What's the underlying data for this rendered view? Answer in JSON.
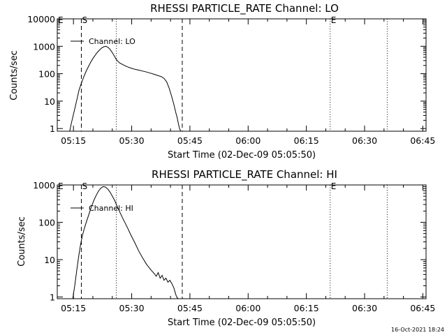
{
  "figure": {
    "footer_timestamp": "16-Oct-2021 18:24"
  },
  "chart_data": [
    {
      "type": "line",
      "title": "RHESSI PARTICLE_RATE Channel: LO",
      "xlabel": "Start Time (02-Dec-09 05:05:50)",
      "ylabel": "Counts/sec",
      "y_scale": "log",
      "ylim": [
        0.8,
        10000
      ],
      "xlim_minutes": [
        5.0,
        100.0
      ],
      "x_ticks": [
        {
          "minute": 9.17,
          "label": "05:15"
        },
        {
          "minute": 24.17,
          "label": "05:30"
        },
        {
          "minute": 39.17,
          "label": "05:45"
        },
        {
          "minute": 54.17,
          "label": "06:00"
        },
        {
          "minute": 69.17,
          "label": "06:15"
        },
        {
          "minute": 84.17,
          "label": "06:30"
        },
        {
          "minute": 99.17,
          "label": "06:45"
        }
      ],
      "y_ticks": [
        {
          "value": 1,
          "label": "1"
        },
        {
          "value": 10,
          "label": "10"
        },
        {
          "value": 100,
          "label": "100"
        },
        {
          "value": 1000,
          "label": "1000"
        },
        {
          "value": 10000,
          "label": "10000"
        }
      ],
      "legend": {
        "position": "top-left",
        "entries": [
          "Channel: LO"
        ]
      },
      "grid": false,
      "markers": [
        {
          "label": "E",
          "minute": 5.0
        },
        {
          "label": "S",
          "minute": 11.2
        },
        {
          "label": "E",
          "minute": 75.3
        }
      ],
      "vlines": [
        {
          "minute": 11.2,
          "style": "dashed"
        },
        {
          "minute": 20.2,
          "style": "dotted"
        },
        {
          "minute": 37.2,
          "style": "dashed"
        },
        {
          "minute": 75.3,
          "style": "dotted"
        },
        {
          "minute": 90.0,
          "style": "dotted"
        }
      ],
      "series": [
        {
          "name": "Channel: LO",
          "x": [
            8.2,
            8.6,
            9.1,
            9.6,
            10.1,
            10.6,
            11.2,
            11.8,
            12.4,
            13.0,
            13.6,
            14.2,
            14.8,
            15.4,
            16.0,
            16.5,
            17.0,
            17.5,
            18.0,
            18.5,
            19.0,
            19.6,
            20.2,
            21.0,
            22.0,
            23.0,
            24.0,
            25.0,
            26.0,
            27.0,
            28.0,
            29.0,
            30.0,
            31.0,
            31.8,
            32.5,
            33.2,
            33.8,
            34.4,
            35.0,
            35.5,
            35.9,
            36.2,
            36.5,
            36.8
          ],
          "values": [
            0.8,
            1.5,
            3,
            6,
            12,
            25,
            45,
            75,
            120,
            180,
            260,
            360,
            480,
            620,
            760,
            880,
            960,
            1000,
            930,
            800,
            640,
            470,
            330,
            250,
            210,
            180,
            160,
            145,
            135,
            125,
            115,
            105,
            95,
            85,
            78,
            68,
            50,
            30,
            16,
            8,
            4,
            2.5,
            1.5,
            1.0,
            0.8
          ]
        }
      ]
    },
    {
      "type": "line",
      "title": "RHESSI PARTICLE_RATE Channel: HI",
      "xlabel": "Start Time (02-Dec-09 05:05:50)",
      "ylabel": "Counts/sec",
      "y_scale": "log",
      "ylim": [
        0.9,
        1000
      ],
      "xlim_minutes": [
        5.0,
        100.0
      ],
      "x_ticks": [
        {
          "minute": 9.17,
          "label": "05:15"
        },
        {
          "minute": 24.17,
          "label": "05:30"
        },
        {
          "minute": 39.17,
          "label": "05:45"
        },
        {
          "minute": 54.17,
          "label": "06:00"
        },
        {
          "minute": 69.17,
          "label": "06:15"
        },
        {
          "minute": 84.17,
          "label": "06:30"
        },
        {
          "minute": 99.17,
          "label": "06:45"
        }
      ],
      "y_ticks": [
        {
          "value": 1,
          "label": "1"
        },
        {
          "value": 10,
          "label": "10"
        },
        {
          "value": 100,
          "label": "100"
        },
        {
          "value": 1000,
          "label": "1000"
        }
      ],
      "legend": {
        "position": "top-left",
        "entries": [
          "Channel: HI"
        ]
      },
      "grid": false,
      "markers": [
        {
          "label": "E",
          "minute": 5.0
        },
        {
          "label": "S",
          "minute": 11.2
        },
        {
          "label": "E",
          "minute": 75.3
        }
      ],
      "vlines": [
        {
          "minute": 11.2,
          "style": "dashed"
        },
        {
          "minute": 20.2,
          "style": "dotted"
        },
        {
          "minute": 37.2,
          "style": "dashed"
        },
        {
          "minute": 75.3,
          "style": "dotted"
        },
        {
          "minute": 90.0,
          "style": "dotted"
        }
      ],
      "series": [
        {
          "name": "Channel: HI",
          "x": [
            9.0,
            9.5,
            10.0,
            10.5,
            11.0,
            11.5,
            12.0,
            12.6,
            13.2,
            13.8,
            14.4,
            15.0,
            15.6,
            16.2,
            16.8,
            17.4,
            18.0,
            18.6,
            19.2,
            19.8,
            20.4,
            21.2,
            22.0,
            23.0,
            24.0,
            25.0,
            26.0,
            27.0,
            28.0,
            29.0,
            30.0,
            30.5,
            31.0,
            31.5,
            32.0,
            32.5,
            33.0,
            33.5,
            34.0,
            34.5,
            35.0,
            35.3,
            35.6,
            35.9,
            36.2
          ],
          "values": [
            0.9,
            2,
            5,
            12,
            25,
            45,
            70,
            110,
            170,
            260,
            380,
            520,
            680,
            820,
            900,
            880,
            780,
            640,
            500,
            380,
            270,
            180,
            120,
            75,
            45,
            28,
            17,
            11,
            7.5,
            5.5,
            4.2,
            3.6,
            4.5,
            3.2,
            3.8,
            2.8,
            3.2,
            2.5,
            2.8,
            2.3,
            1.8,
            1.4,
            1.1,
            0.95,
            0.9
          ]
        }
      ]
    }
  ]
}
